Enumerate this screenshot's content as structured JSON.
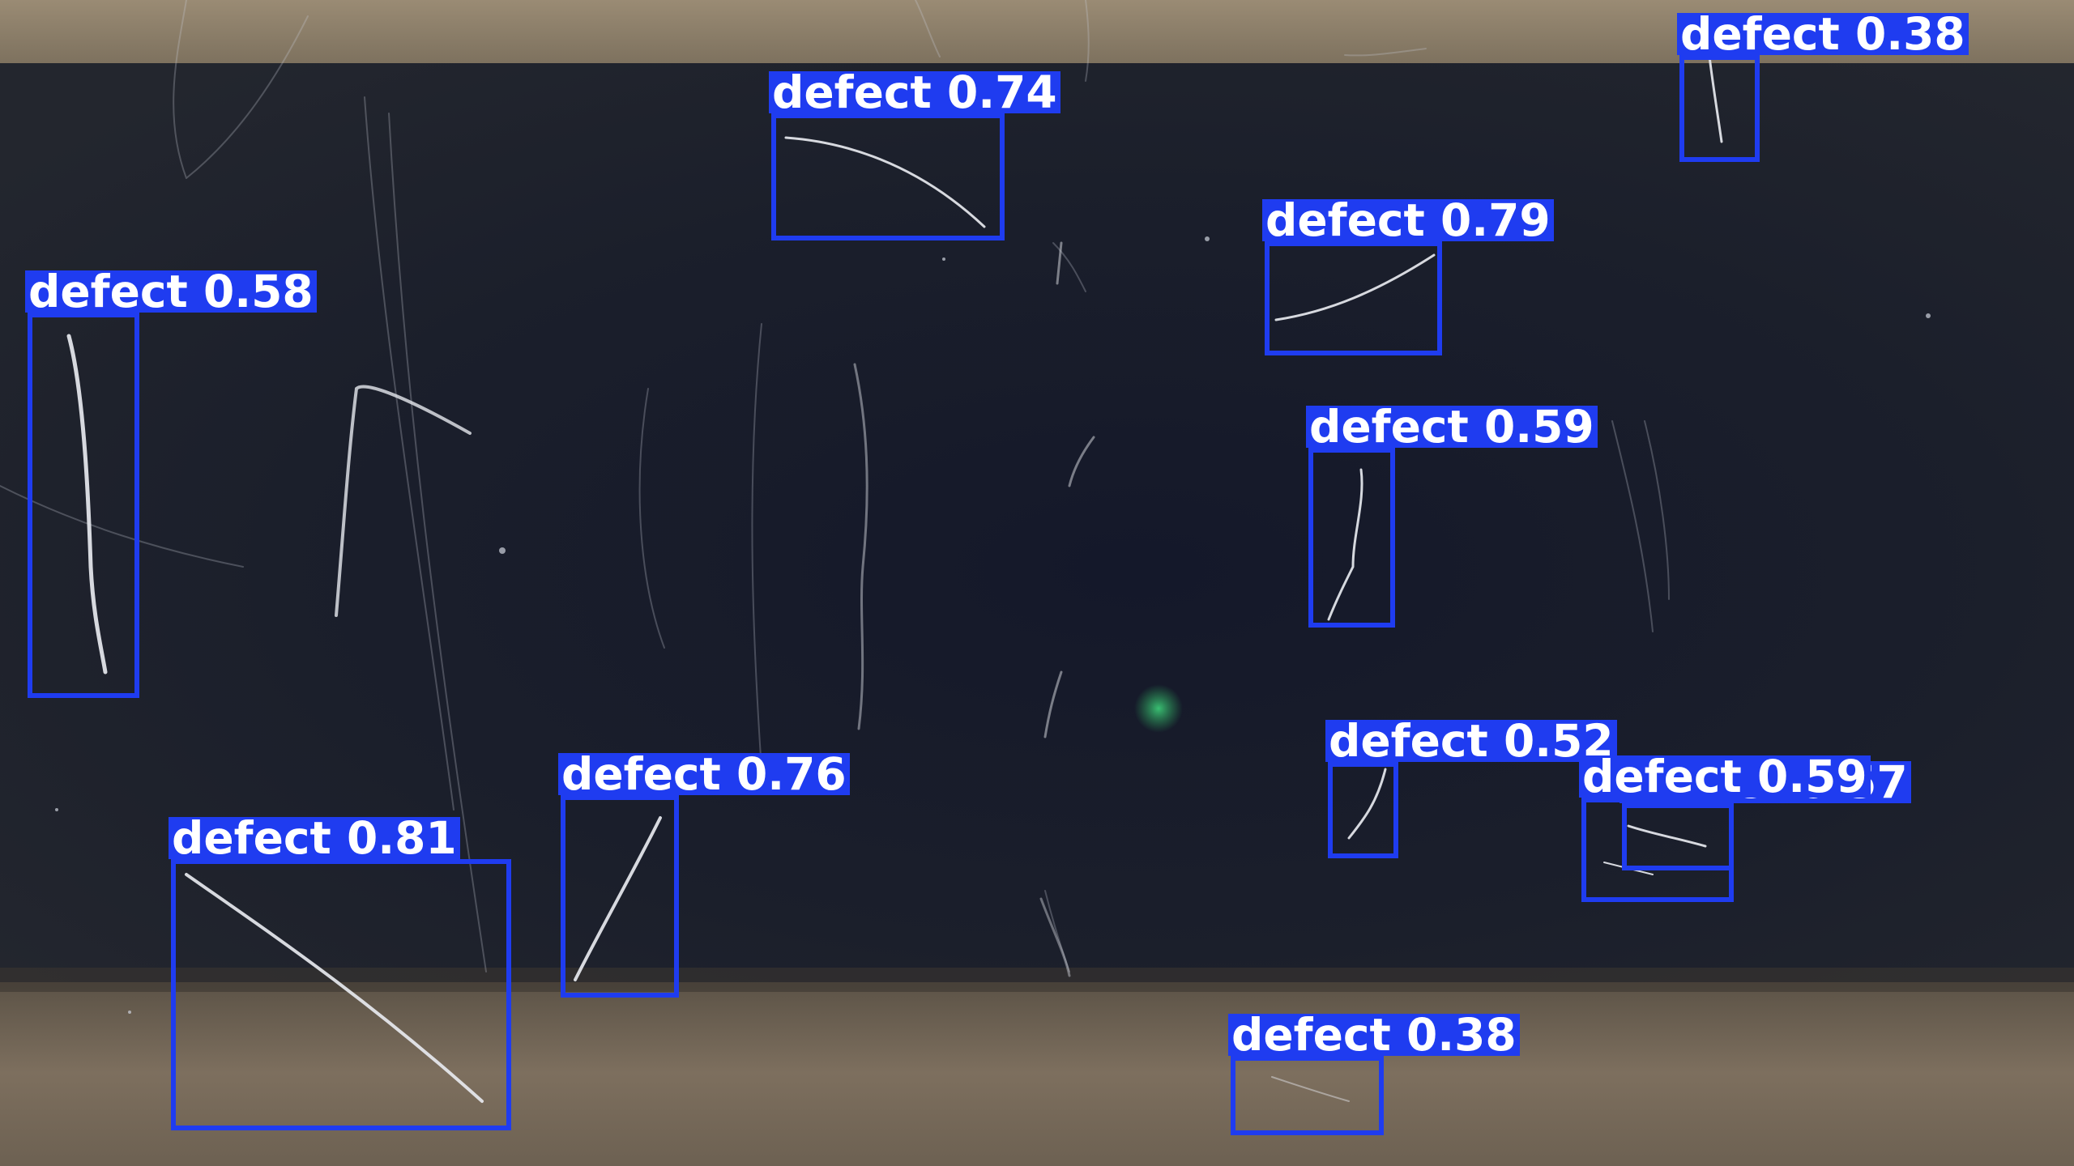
{
  "image": {
    "description_colors": {
      "desk_wood": "#8a7c68",
      "panel_dark": "#1a1d26",
      "box_color": "#1f3cf0",
      "label_text": "#ffffff",
      "laser_dot": "#2fa85a"
    }
  },
  "detections": [
    {
      "label": "defect",
      "score": "0.74"
    },
    {
      "label": "defect",
      "score": "0.38"
    },
    {
      "label": "defect",
      "score": "0.79"
    },
    {
      "label": "defect",
      "score": "0.58"
    },
    {
      "label": "defect",
      "score": "0.59"
    },
    {
      "label": "defect",
      "score": "0.52"
    },
    {
      "label": "defect",
      "score": "0.57"
    },
    {
      "label": "defect",
      "score": "0.59"
    },
    {
      "label": "defect",
      "score": "0.76"
    },
    {
      "label": "defect",
      "score": "0.81"
    },
    {
      "label": "defect",
      "score": "0.38"
    }
  ]
}
